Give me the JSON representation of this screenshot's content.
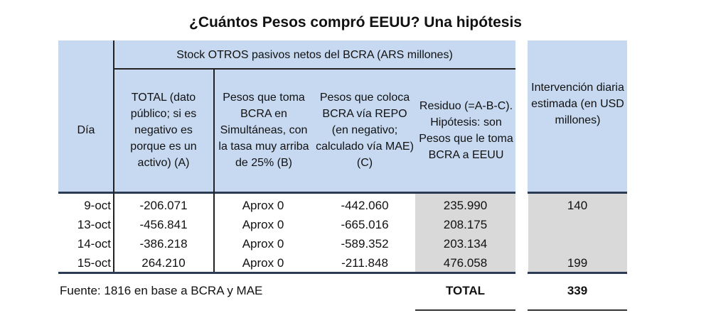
{
  "title": "¿Cuántos Pesos compró EEUU? Una hipótesis",
  "group_header": "Stock OTROS pasivos netos del BCRA (ARS millones)",
  "columns": {
    "dia": "Día",
    "total": "TOTAL (dato público; si es negativo es porque es un activo) (A)",
    "b": "Pesos que toma BCRA en Simultáneas, con la tasa muy arriba de 25% (B)",
    "c": "Pesos que coloca BCRA vía REPO (en negativo; calculado vía MAE) (C)",
    "residuo": "Residuo (=A-B-C). Hipótesis: son Pesos que le toma BCRA a EEUU",
    "intervencion": "Intervención diaria estimada (en USD millones)"
  },
  "rows": [
    {
      "dia": "9-oct",
      "total": "-206.071",
      "b": "Aprox 0",
      "c": "-442.060",
      "residuo": "235.990",
      "intervencion": "140"
    },
    {
      "dia": "13-oct",
      "total": "-456.841",
      "b": "Aprox 0",
      "c": "-665.016",
      "residuo": "208.175",
      "intervencion": ""
    },
    {
      "dia": "14-oct",
      "total": "-386.218",
      "b": "Aprox 0",
      "c": "-589.352",
      "residuo": "203.134",
      "intervencion": ""
    },
    {
      "dia": "15-oct",
      "total": "264.210",
      "b": "Aprox 0",
      "c": "-211.848",
      "residuo": "476.058",
      "intervencion": "199"
    }
  ],
  "source": "Fuente: 1816 en base a BCRA y MAE",
  "total_label": "TOTAL",
  "total_value": "339"
}
